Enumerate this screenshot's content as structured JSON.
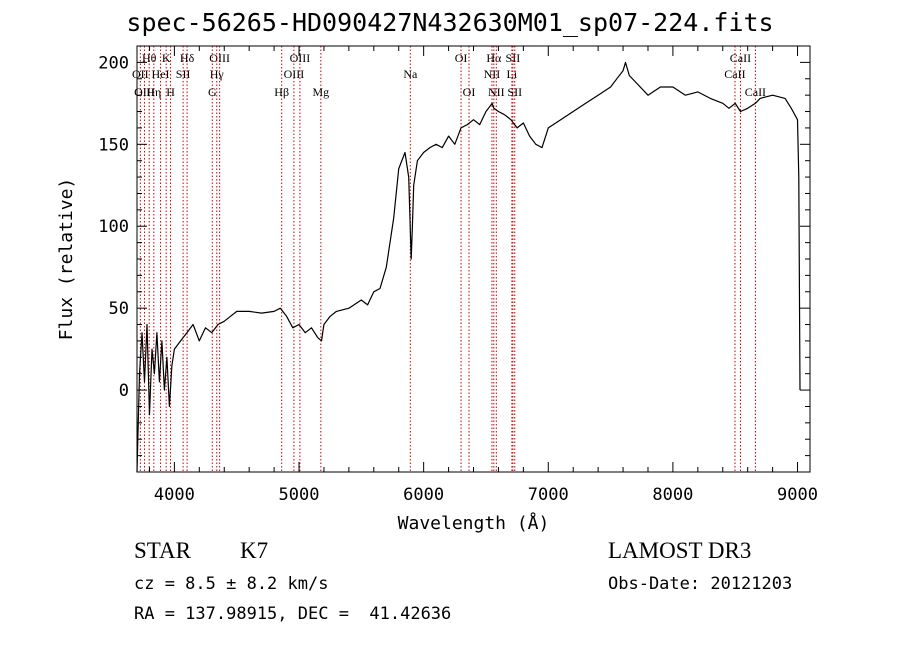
{
  "title": "spec-56265-HD090427N432630M01_sp07-224.fits",
  "footer": {
    "obj_class": "STAR",
    "obj_subclass": "K7",
    "survey": "LAMOST DR3",
    "redshift_text": "cz = 8.5 ± 8.2 km/s",
    "obs_date": "Obs-Date: 20121203",
    "coords_text": "RA = 137.98915, DEC =  41.42636"
  },
  "chart_data": {
    "type": "line",
    "title": "spec-56265-HD090427N432630M01_sp07-224.fits",
    "xlabel": "Wavelength (Å)",
    "ylabel": "Flux (relative)",
    "xlim": [
      3700,
      9100
    ],
    "ylim": [
      -50,
      210
    ],
    "x_ticks": [
      4000,
      5000,
      6000,
      7000,
      8000,
      9000
    ],
    "y_ticks": [
      0,
      50,
      100,
      150,
      200
    ],
    "line_color": "#000000",
    "marker_color": "#cc0000",
    "spectrum": {
      "x": [
        3700,
        3720,
        3740,
        3760,
        3780,
        3800,
        3820,
        3840,
        3860,
        3880,
        3900,
        3920,
        3940,
        3960,
        3980,
        4000,
        4050,
        4100,
        4150,
        4200,
        4250,
        4300,
        4350,
        4400,
        4450,
        4500,
        4600,
        4700,
        4800,
        4850,
        4900,
        4950,
        5000,
        5050,
        5100,
        5150,
        5180,
        5200,
        5250,
        5300,
        5400,
        5500,
        5550,
        5600,
        5650,
        5700,
        5730,
        5760,
        5800,
        5850,
        5880,
        5900,
        5910,
        5920,
        5950,
        6000,
        6050,
        6100,
        6150,
        6200,
        6250,
        6300,
        6350,
        6400,
        6450,
        6500,
        6550,
        6563,
        6600,
        6650,
        6700,
        6750,
        6800,
        6850,
        6900,
        6950,
        7000,
        7100,
        7200,
        7300,
        7400,
        7500,
        7550,
        7600,
        7620,
        7650,
        7700,
        7800,
        7900,
        8000,
        8100,
        8200,
        8300,
        8400,
        8450,
        8500,
        8542,
        8600,
        8662,
        8700,
        8800,
        8900,
        8950,
        9000,
        9010,
        9020
      ],
      "y": [
        -50,
        10,
        35,
        5,
        40,
        -15,
        25,
        10,
        35,
        5,
        30,
        0,
        20,
        -10,
        15,
        25,
        30,
        35,
        40,
        30,
        38,
        35,
        40,
        42,
        45,
        48,
        48,
        47,
        48,
        50,
        45,
        38,
        40,
        35,
        38,
        32,
        30,
        40,
        45,
        48,
        50,
        55,
        52,
        60,
        62,
        75,
        90,
        105,
        135,
        145,
        130,
        80,
        100,
        125,
        140,
        145,
        148,
        150,
        148,
        155,
        150,
        160,
        162,
        165,
        162,
        170,
        175,
        172,
        170,
        168,
        165,
        160,
        163,
        155,
        150,
        148,
        160,
        165,
        170,
        175,
        180,
        185,
        190,
        195,
        200,
        192,
        188,
        180,
        185,
        185,
        180,
        182,
        178,
        175,
        172,
        175,
        170,
        172,
        175,
        178,
        180,
        178,
        172,
        165,
        130,
        0
      ]
    },
    "line_markers": [
      {
        "label": "Hθ",
        "wavelength": 3798,
        "row": 1
      },
      {
        "label": "OII",
        "wavelength": 3727,
        "row": 2
      },
      {
        "label": "OIII",
        "wavelength": 3760,
        "row": 3
      },
      {
        "label": "Hη",
        "wavelength": 3835,
        "row": 3
      },
      {
        "label": "K",
        "wavelength": 3934,
        "row": 1
      },
      {
        "label": "HeI",
        "wavelength": 3889,
        "row": 2
      },
      {
        "label": "SII",
        "wavelength": 4070,
        "row": 2
      },
      {
        "label": "H",
        "wavelength": 3969,
        "row": 3
      },
      {
        "label": "Hδ",
        "wavelength": 4102,
        "row": 1
      },
      {
        "label": "OIII",
        "wavelength": 4363,
        "row": 1
      },
      {
        "label": "Hγ",
        "wavelength": 4340,
        "row": 2
      },
      {
        "label": "G",
        "wavelength": 4304,
        "row": 3
      },
      {
        "label": "Hβ",
        "wavelength": 4861,
        "row": 3
      },
      {
        "label": "OIII",
        "wavelength": 5007,
        "row": 1
      },
      {
        "label": "OIII",
        "wavelength": 4959,
        "row": 2
      },
      {
        "label": "Mg",
        "wavelength": 5175,
        "row": 3
      },
      {
        "label": "Na",
        "wavelength": 5893,
        "row": 2
      },
      {
        "label": "OI",
        "wavelength": 6300,
        "row": 1
      },
      {
        "label": "OI",
        "wavelength": 6364,
        "row": 3
      },
      {
        "label": "Hα",
        "wavelength": 6563,
        "row": 1
      },
      {
        "label": "SII",
        "wavelength": 6716,
        "row": 1
      },
      {
        "label": "NII",
        "wavelength": 6548,
        "row": 2
      },
      {
        "label": "Li",
        "wavelength": 6708,
        "row": 2
      },
      {
        "label": "NII",
        "wavelength": 6583,
        "row": 3
      },
      {
        "label": "SII",
        "wavelength": 6731,
        "row": 3
      },
      {
        "label": "CaII",
        "wavelength": 8542,
        "row": 1
      },
      {
        "label": "CaII",
        "wavelength": 8498,
        "row": 2
      },
      {
        "label": "CaII",
        "wavelength": 8662,
        "row": 3
      }
    ],
    "grid": false,
    "legend": "none"
  }
}
